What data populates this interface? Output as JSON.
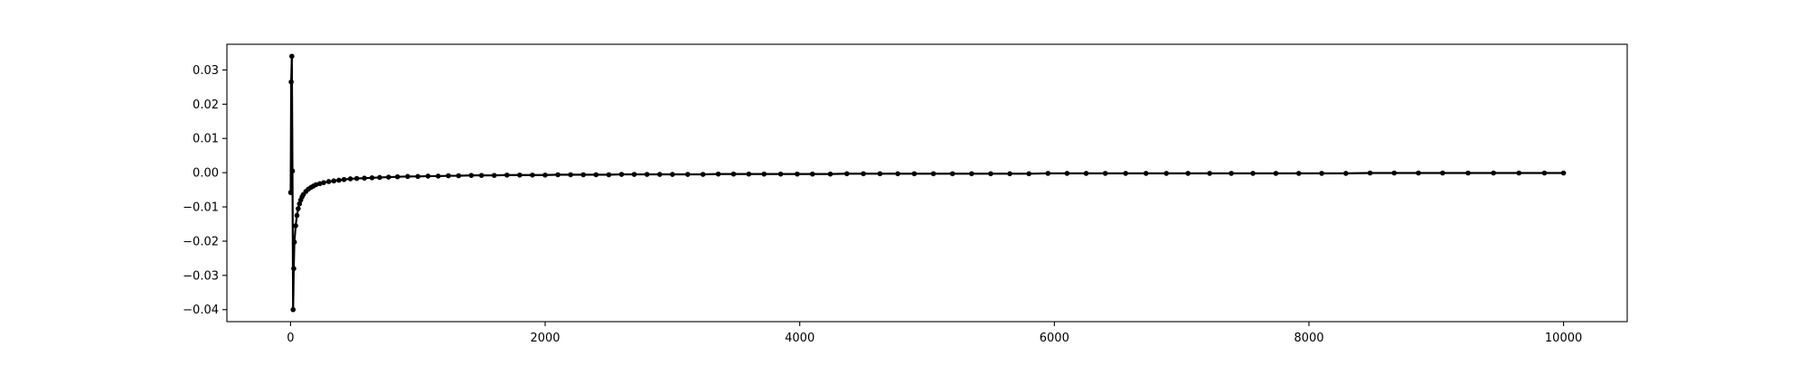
{
  "chart_data": {
    "type": "line",
    "title": "",
    "xlabel": "",
    "ylabel": "",
    "xlim": [
      -500,
      10500
    ],
    "ylim": [
      -0.0435,
      0.0375
    ],
    "grid": false,
    "x_ticks": [
      0,
      2000,
      4000,
      6000,
      8000,
      10000
    ],
    "x_tick_labels": [
      "0",
      "2000",
      "4000",
      "6000",
      "8000",
      "10000"
    ],
    "y_ticks": [
      -0.04,
      -0.03,
      -0.02,
      -0.01,
      0.0,
      0.01,
      0.02,
      0.03
    ],
    "y_tick_labels": [
      "−0.04",
      "−0.03",
      "−0.02",
      "−0.01",
      "0.00",
      "0.01",
      "0.02",
      "0.03"
    ],
    "colors": {
      "line": "#000000",
      "marker": "#000000",
      "axes": "#000000"
    },
    "marker": "circle",
    "series": [
      {
        "x": [
          1,
          5,
          10,
          15,
          20,
          25,
          30,
          40,
          50,
          60,
          70,
          80,
          90,
          100,
          120,
          140,
          160,
          180,
          200,
          230,
          260,
          300,
          340,
          380,
          420,
          470,
          520,
          580,
          640,
          700,
          770,
          840,
          920,
          1000,
          1080,
          1160,
          1240,
          1320,
          1420,
          1500,
          1600,
          1700,
          1800,
          1900,
          2000,
          2100,
          2200,
          2300,
          2400,
          2500,
          2600,
          2700,
          2800,
          2900,
          3000,
          3120,
          3240,
          3360,
          3480,
          3600,
          3720,
          3850,
          3980,
          4100,
          4240,
          4370,
          4500,
          4630,
          4770,
          4900,
          5050,
          5200,
          5350,
          5500,
          5650,
          5800,
          5950,
          6100,
          6250,
          6400,
          6560,
          6720,
          6880,
          7050,
          7220,
          7390,
          7560,
          7740,
          7920,
          8100,
          8290,
          8480,
          8670,
          8860,
          9050,
          9250,
          9450,
          9650,
          9850,
          10000
        ],
        "y": [
          -0.0058,
          0.0265,
          0.034,
          0.0005,
          -0.04,
          -0.028,
          -0.0203,
          -0.0155,
          -0.0125,
          -0.0105,
          -0.0091,
          -0.008,
          -0.0071,
          -0.0064,
          -0.0055,
          -0.0048,
          -0.0043,
          -0.0039,
          -0.0035,
          -0.0032,
          -0.0029,
          -0.0026,
          -0.0024,
          -0.0022,
          -0.002,
          -0.0018,
          -0.0017,
          -0.0016,
          -0.0015,
          -0.0014,
          -0.0013,
          -0.0012,
          -0.0011,
          -0.0011,
          -0.001,
          -0.001,
          -0.0009,
          -0.0009,
          -0.0008,
          -0.0008,
          -0.0008,
          -0.0007,
          -0.0007,
          -0.0007,
          -0.0007,
          -0.0006,
          -0.0006,
          -0.0006,
          -0.0006,
          -0.0006,
          -0.0005,
          -0.0005,
          -0.0005,
          -0.0005,
          -0.0005,
          -0.0005,
          -0.0005,
          -0.0004,
          -0.0004,
          -0.0004,
          -0.0004,
          -0.0004,
          -0.0004,
          -0.0004,
          -0.0004,
          -0.0003,
          -0.0003,
          -0.0003,
          -0.0003,
          -0.0003,
          -0.0003,
          -0.0003,
          -0.0003,
          -0.0003,
          -0.0003,
          -0.0003,
          -0.0002,
          -0.0002,
          -0.0002,
          -0.0002,
          -0.0002,
          -0.0002,
          -0.0002,
          -0.0002,
          -0.0002,
          -0.0002,
          -0.0002,
          -0.0002,
          -0.0002,
          -0.0002,
          -0.0002,
          -0.0001,
          -0.0001,
          -0.0001,
          -0.0001,
          -0.0001,
          -0.0001,
          -0.0001,
          -0.0001,
          -0.0001
        ]
      }
    ]
  }
}
